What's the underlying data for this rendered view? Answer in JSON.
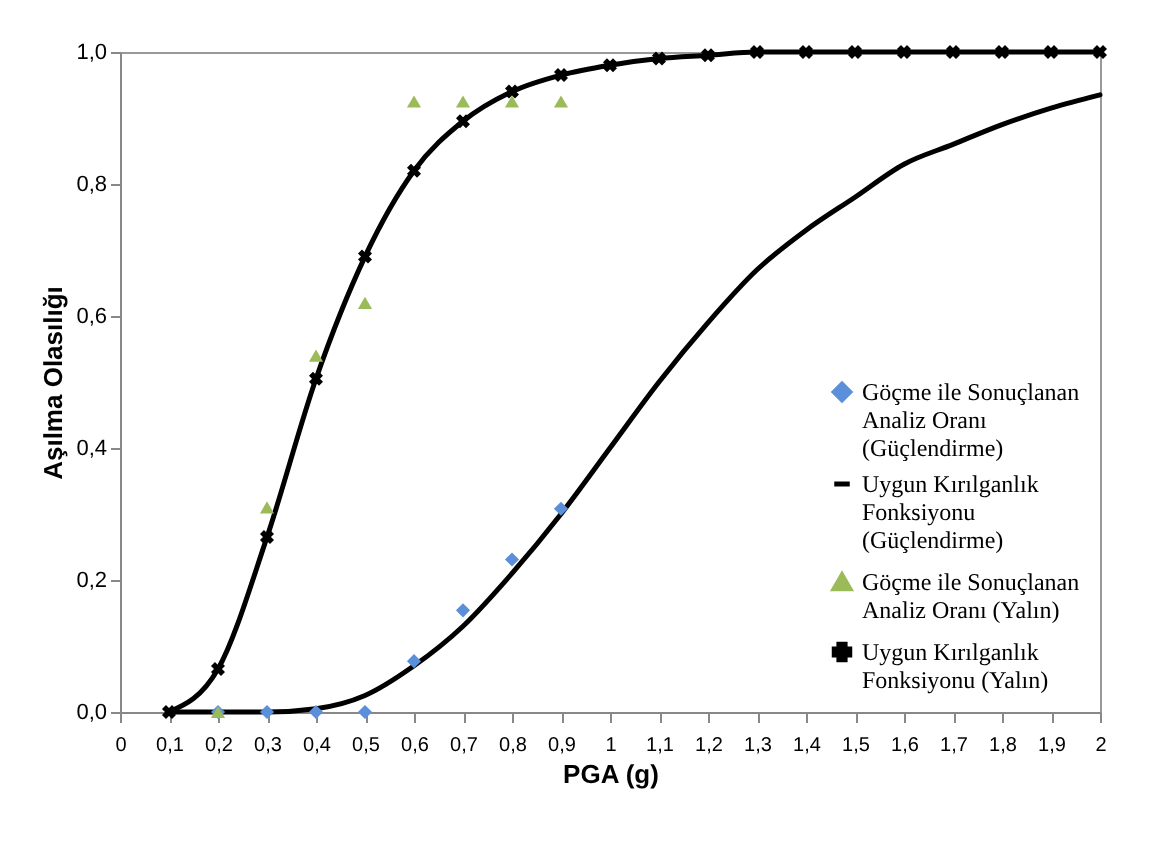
{
  "chart_data": {
    "type": "scatter",
    "xlabel": "PGA (g)",
    "ylabel": "Aşılma Olasılığı",
    "xlim": [
      0,
      2
    ],
    "ylim": [
      0,
      1
    ],
    "xticks": [
      {
        "value": 0,
        "label": "0"
      },
      {
        "value": 0.1,
        "label": "0,1"
      },
      {
        "value": 0.2,
        "label": "0,2"
      },
      {
        "value": 0.3,
        "label": "0,3"
      },
      {
        "value": 0.4,
        "label": "0,4"
      },
      {
        "value": 0.5,
        "label": "0,5"
      },
      {
        "value": 0.6,
        "label": "0,6"
      },
      {
        "value": 0.7,
        "label": "0,7"
      },
      {
        "value": 0.8,
        "label": "0,8"
      },
      {
        "value": 0.9,
        "label": "0,9"
      },
      {
        "value": 1,
        "label": "1"
      },
      {
        "value": 1.1,
        "label": "1,1"
      },
      {
        "value": 1.2,
        "label": "1,2"
      },
      {
        "value": 1.3,
        "label": "1,3"
      },
      {
        "value": 1.4,
        "label": "1,4"
      },
      {
        "value": 1.5,
        "label": "1,5"
      },
      {
        "value": 1.6,
        "label": "1,6"
      },
      {
        "value": 1.7,
        "label": "1,7"
      },
      {
        "value": 1.8,
        "label": "1,8"
      },
      {
        "value": 1.9,
        "label": "1,9"
      },
      {
        "value": 2,
        "label": "2"
      }
    ],
    "yticks": [
      {
        "value": 0,
        "label": "0,0"
      },
      {
        "value": 0.2,
        "label": "0,2"
      },
      {
        "value": 0.4,
        "label": "0,4"
      },
      {
        "value": 0.6,
        "label": "0,6"
      },
      {
        "value": 0.8,
        "label": "0,8"
      },
      {
        "value": 1,
        "label": "1,0"
      }
    ],
    "grid": false,
    "legend": "bottom right",
    "series": [
      {
        "name": "Göçme ile Sonuçlanan Analiz  Oranı (Güçlendirme)",
        "type": "scatter",
        "marker": "diamond",
        "color": "#5b8fd9",
        "x": [
          0.2,
          0.3,
          0.4,
          0.5,
          0.6,
          0.7,
          0.8,
          0.9
        ],
        "values": [
          0,
          0,
          0,
          0,
          0.077,
          0.154,
          0.231,
          0.308
        ]
      },
      {
        "name": "Uygun Kırılganlık Fonksiyonu (Güçlendirme)",
        "type": "line",
        "marker": "none",
        "color": "#000000",
        "x": [
          0.1,
          0.2,
          0.3,
          0.4,
          0.5,
          0.6,
          0.7,
          0.8,
          0.9,
          1,
          1.1,
          1.2,
          1.3,
          1.4,
          1.5,
          1.6,
          1.7,
          1.8,
          1.9,
          2
        ],
        "values": [
          0,
          0,
          0,
          0.005,
          0.025,
          0.07,
          0.13,
          0.21,
          0.3,
          0.4,
          0.5,
          0.59,
          0.67,
          0.73,
          0.78,
          0.83,
          0.86,
          0.89,
          0.915,
          0.935
        ]
      },
      {
        "name": "Göçme ile Sonuçlanan Analiz Oranı (Yalın)",
        "type": "scatter",
        "marker": "triangle",
        "color": "#9bbb59",
        "x": [
          0.2,
          0.3,
          0.4,
          0.5,
          0.6,
          0.7,
          0.8,
          0.9
        ],
        "values": [
          0,
          0.31,
          0.54,
          0.62,
          0.925,
          0.925,
          0.925,
          0.925
        ]
      },
      {
        "name": "Uygun Kırılganlık Fonksiyonu (Yalın)",
        "type": "line",
        "marker": "cross",
        "color": "#000000",
        "x": [
          0.1,
          0.2,
          0.3,
          0.4,
          0.5,
          0.6,
          0.7,
          0.8,
          0.9,
          1,
          1.1,
          1.2,
          1.3,
          1.4,
          1.5,
          1.6,
          1.7,
          1.8,
          1.9,
          2
        ],
        "values": [
          0,
          0.065,
          0.265,
          0.505,
          0.69,
          0.82,
          0.895,
          0.94,
          0.965,
          0.98,
          0.99,
          0.995,
          1,
          1,
          1,
          1,
          1,
          1,
          1,
          1
        ]
      }
    ]
  }
}
